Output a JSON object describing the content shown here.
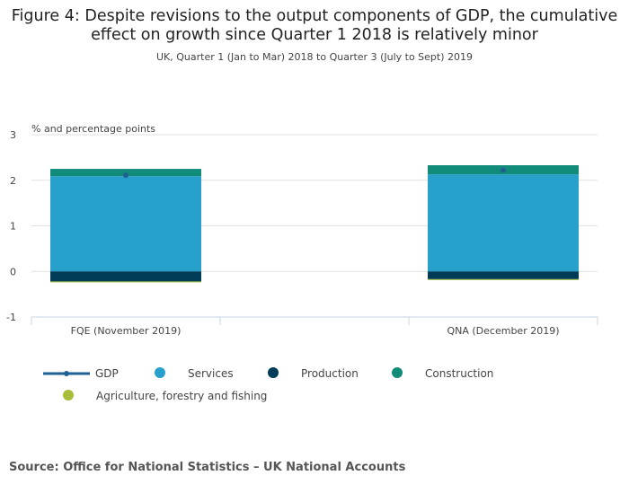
{
  "chart_data": {
    "type": "bar",
    "stacked": true,
    "title": "Figure 4: Despite revisions to the output components of GDP, the cumulative effect on growth since Quarter 1 2018 is relatively minor",
    "subtitle": "UK, Quarter 1 (Jan to Mar) 2018 to Quarter 3 (July to Sept) 2019",
    "ylabel": "% and percentage points",
    "ylim": [
      -1,
      3
    ],
    "yticks": [
      "3",
      "2",
      "1",
      "0",
      "-1"
    ],
    "categories": [
      "FQE (November 2019)",
      "",
      "QNA (December 2019)"
    ],
    "series": [
      {
        "name": "Services",
        "color": "#27a0cc",
        "values": [
          2.09,
          null,
          2.13
        ]
      },
      {
        "name": "Production",
        "color": "#003c57",
        "values": [
          -0.22,
          null,
          -0.17
        ]
      },
      {
        "name": "Construction",
        "color": "#118c7b",
        "values": [
          0.16,
          null,
          0.2
        ]
      },
      {
        "name": "Agriculture, forestry and fishing",
        "color": "#a8bd3a",
        "values": [
          -0.02,
          null,
          -0.01
        ]
      }
    ],
    "line": {
      "name": "GDP",
      "color": "#206095",
      "values": [
        2.11,
        null,
        2.22
      ]
    },
    "grid": true,
    "legend_position": "bottom"
  },
  "source": "Source: Office for National Statistics – UK National Accounts"
}
